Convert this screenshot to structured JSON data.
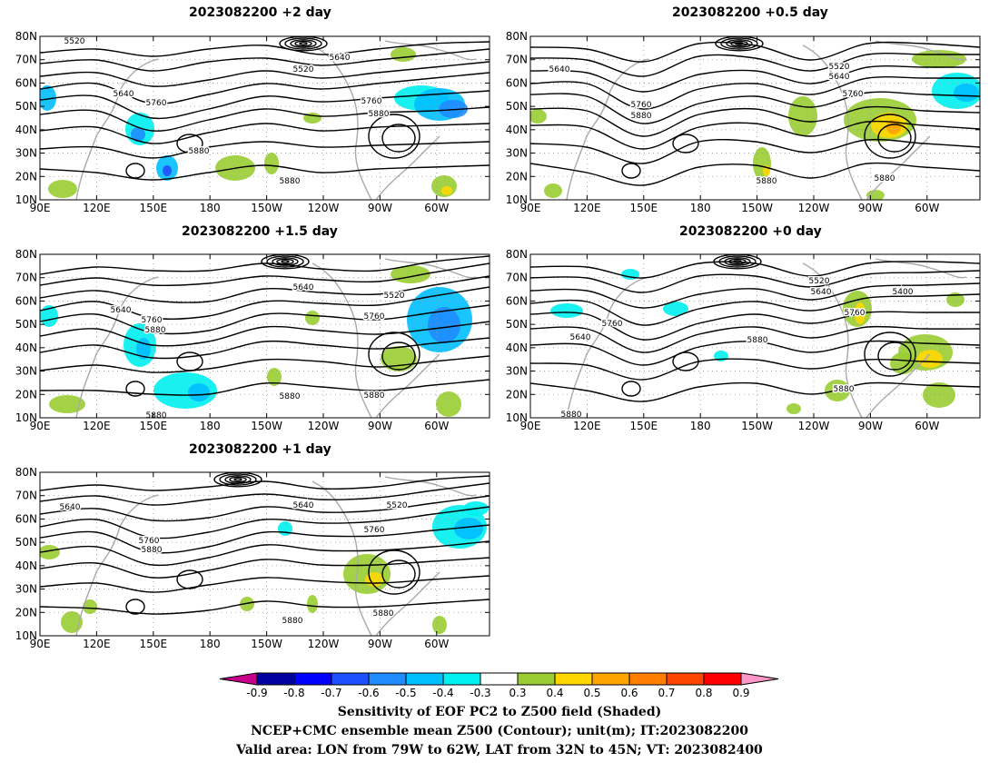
{
  "panels": [
    {
      "title": "2023082200 +2 day"
    },
    {
      "title": "2023082200 +0.5 day"
    },
    {
      "title": "2023082200 +1.5 day"
    },
    {
      "title": "2023082200 +0 day"
    },
    {
      "title": "2023082200 +1 day"
    }
  ],
  "map_axes": {
    "lat_labels": [
      "80N",
      "70N",
      "60N",
      "50N",
      "40N",
      "30N",
      "20N",
      "10N"
    ],
    "lon_labels": [
      "90E",
      "120E",
      "150E",
      "180",
      "150W",
      "120W",
      "90W",
      "60W"
    ]
  },
  "contour_labels": {
    "p0": [
      "5520",
      "5640",
      "5520",
      "5640",
      "5760",
      "5760",
      "5880",
      "5880",
      "5880"
    ],
    "p1": [
      "5640",
      "5520",
      "5640",
      "5760",
      "5760",
      "5880",
      "5880",
      "5880"
    ],
    "p2": [
      "5640",
      "5640",
      "5520",
      "5760",
      "5760",
      "5880",
      "5880",
      "5880",
      "5880"
    ],
    "p3": [
      "5520",
      "5400",
      "5640",
      "5760",
      "5760",
      "5640",
      "5880",
      "5880",
      "5880"
    ],
    "p4": [
      "5640",
      "5640",
      "5520",
      "5760",
      "5760",
      "5880",
      "5880",
      "5880"
    ]
  },
  "colorbar": {
    "levels": [
      "-0.9",
      "-0.8",
      "-0.7",
      "-0.6",
      "-0.5",
      "-0.4",
      "-0.3",
      "0.3",
      "0.4",
      "0.5",
      "0.6",
      "0.7",
      "0.8",
      "0.9"
    ],
    "colors": [
      "#c8008c",
      "#0000a0",
      "#0000ff",
      "#1e50ff",
      "#1e8cff",
      "#00beff",
      "#00f0f0",
      "#ffffff",
      "#9acd32",
      "#ffd700",
      "#ffa500",
      "#ff7f00",
      "#ff4500",
      "#ff0000",
      "#ff96c8"
    ]
  },
  "footer": {
    "line1": "Sensitivity of EOF PC2 to Z500 field (Shaded)",
    "line2": "NCEP+CMC ensemble mean Z500 (Contour); unit(m); IT:2023082200",
    "line3": "Valid area: LON from 79W to 62W, LAT from 32N to 45N; VT: 2023082400"
  }
}
